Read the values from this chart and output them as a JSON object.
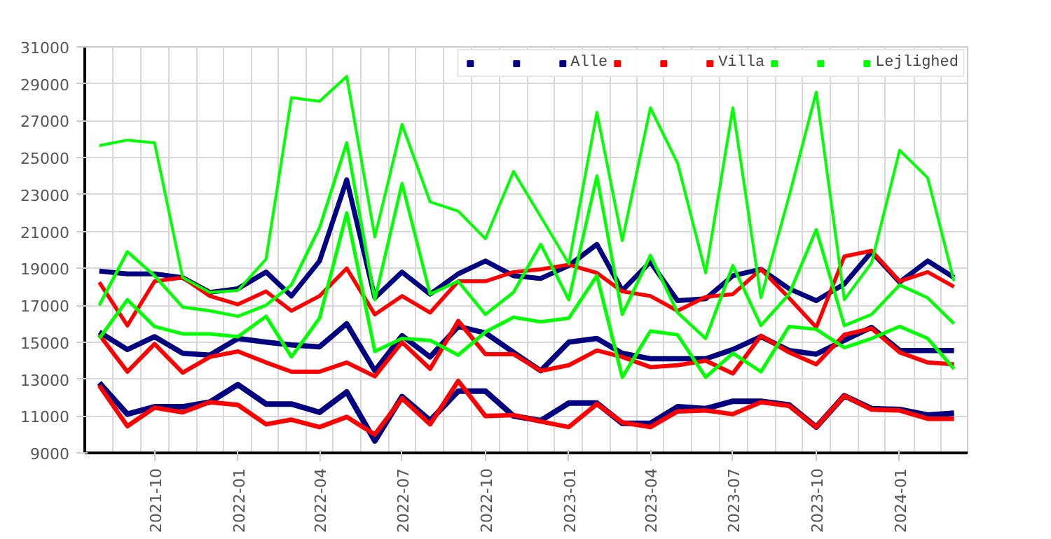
{
  "chart_data": {
    "type": "line",
    "x": [
      "2021-08",
      "2021-09",
      "2021-10",
      "2021-11",
      "2021-12",
      "2022-01",
      "2022-02",
      "2022-03",
      "2022-04",
      "2022-05",
      "2022-06",
      "2022-07",
      "2022-08",
      "2022-09",
      "2022-10",
      "2022-11",
      "2022-12",
      "2023-01",
      "2023-02",
      "2023-03",
      "2023-04",
      "2023-05",
      "2023-06",
      "2023-07",
      "2023-08",
      "2023-09",
      "2023-10",
      "2023-11",
      "2023-12",
      "2024-01",
      "2024-02",
      "2024-03"
    ],
    "xlim": [
      "2021-07-16",
      "2024-03-16"
    ],
    "xticks": [
      "2021-10",
      "2022-01",
      "2022-04",
      "2022-07",
      "2022-10",
      "2023-01",
      "2023-04",
      "2023-07",
      "2023-10",
      "2024-01"
    ],
    "ylim": [
      9000,
      31000
    ],
    "yticks": [
      9000,
      11000,
      13000,
      15000,
      17000,
      19000,
      21000,
      23000,
      25000,
      27000,
      29000,
      31000
    ],
    "grid": true,
    "legend": "top right",
    "marker": "none",
    "line_style": "solid",
    "series": [
      {
        "color": "#000080",
        "values": [
          12800,
          11100,
          11500,
          11500,
          11750,
          12700,
          11650,
          11650,
          11200,
          12300,
          9650,
          12050,
          10750,
          12350,
          12350,
          11000,
          10750,
          11700,
          11700,
          10600,
          10600,
          11500,
          11400,
          11800,
          11800,
          11600,
          10400,
          12100,
          11400,
          11350,
          11050,
          11150
        ]
      },
      {
        "color": "#000080",
        "values": [
          15550,
          14600,
          15300,
          14400,
          14300,
          15200,
          15000,
          14850,
          14750,
          16000,
          13450,
          15350,
          14200,
          15850,
          15500,
          14450,
          13450,
          15000,
          15200,
          14400,
          14100,
          14100,
          14100,
          14600,
          15300,
          14550,
          14350,
          15100,
          15800,
          14550,
          14550,
          14550
        ]
      },
      {
        "name": "Alle",
        "color": "#000080",
        "values": [
          18850,
          18700,
          18700,
          18500,
          17700,
          17900,
          18800,
          17500,
          19400,
          23800,
          17400,
          18800,
          17600,
          18700,
          19400,
          18600,
          18450,
          19150,
          20300,
          17800,
          19350,
          17250,
          17350,
          18600,
          18950,
          17900,
          17250,
          18150,
          19900,
          18250,
          19400,
          18500
        ]
      },
      {
        "color": "#ff0000",
        "values": [
          12650,
          10450,
          11450,
          11200,
          11750,
          11600,
          10550,
          10800,
          10400,
          10950,
          10000,
          11950,
          10550,
          12900,
          11000,
          11050,
          10700,
          10400,
          11650,
          10650,
          10400,
          11250,
          11300,
          11100,
          11750,
          11550,
          10400,
          12100,
          11350,
          11300,
          10850,
          10850
        ]
      },
      {
        "color": "#ff0000",
        "values": [
          15400,
          13400,
          14900,
          13350,
          14200,
          14500,
          13900,
          13400,
          13400,
          13900,
          13150,
          15000,
          13550,
          16150,
          14350,
          14350,
          13450,
          13750,
          14550,
          14200,
          13650,
          13750,
          14000,
          13300,
          15350,
          14450,
          13800,
          15400,
          15750,
          14450,
          13900,
          13800
        ]
      },
      {
        "name": "Villa",
        "color": "#ff0000",
        "values": [
          18250,
          15900,
          18300,
          18500,
          17500,
          17050,
          17750,
          16700,
          17500,
          19000,
          16500,
          17500,
          16600,
          18300,
          18300,
          18800,
          18950,
          19200,
          18750,
          17750,
          17500,
          16700,
          17450,
          17600,
          18950,
          17400,
          15800,
          19650,
          19950,
          18300,
          18800,
          18000
        ]
      },
      {
        "color": "#00ff00",
        "values": [
          15200,
          17300,
          15850,
          15450,
          15450,
          15300,
          16400,
          14200,
          16300,
          22000,
          14500,
          15200,
          15100,
          14300,
          15550,
          16350,
          16100,
          16300,
          18600,
          13100,
          15600,
          15400,
          13100,
          14400,
          13400,
          15850,
          15700,
          14700,
          15200,
          15850,
          15200,
          13550
        ]
      },
      {
        "color": "#00ff00",
        "values": [
          17000,
          19900,
          18600,
          16900,
          16700,
          16400,
          17000,
          18100,
          21200,
          25800,
          17300,
          23600,
          17600,
          18300,
          16500,
          17700,
          20300,
          17300,
          24000,
          16500,
          19700,
          16600,
          15200,
          19150,
          15900,
          17600,
          21100,
          15900,
          16500,
          18100,
          17400,
          16000
        ]
      },
      {
        "name": "Lejlighed",
        "color": "#00ff00",
        "values": [
          25650,
          25950,
          25800,
          18500,
          17700,
          17800,
          19500,
          28250,
          28050,
          29400,
          20700,
          26800,
          22600,
          22100,
          20600,
          24250,
          21800,
          19250,
          27450,
          20500,
          27700,
          24700,
          18750,
          27700,
          17400,
          22900,
          28550,
          17300,
          19300,
          25400,
          23900,
          18300
        ]
      }
    ]
  }
}
